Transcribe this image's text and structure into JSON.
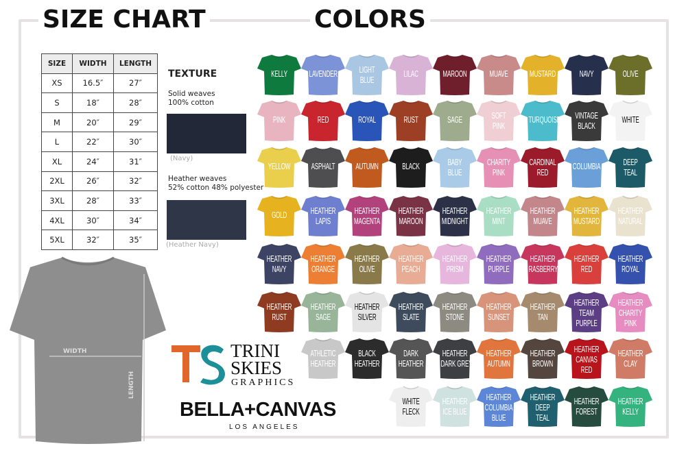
{
  "titles": {
    "size_chart": "SIZE CHART",
    "colors": "COLORS"
  },
  "size_table": {
    "headers": [
      "SIZE",
      "WIDTH",
      "LENGTH"
    ],
    "rows": [
      [
        "XS",
        "16.5″",
        "27″"
      ],
      [
        "S",
        "18″",
        "28″"
      ],
      [
        "M",
        "20″",
        "29″"
      ],
      [
        "L",
        "22″",
        "30″"
      ],
      [
        "XL",
        "24″",
        "31″"
      ],
      [
        "2XL",
        "26″",
        "32″"
      ],
      [
        "3XL",
        "28″",
        "33″"
      ],
      [
        "4XL",
        "30″",
        "34″"
      ],
      [
        "5XL",
        "32″",
        "35″"
      ]
    ]
  },
  "texture": {
    "title": "TEXTURE",
    "solid_line1": "Solid weaves",
    "solid_line2": "100% cotton",
    "solid_caption": "(Navy)",
    "solid_color": "#232838",
    "heather_line1": "Heather weaves",
    "heather_line2": "52% cotton 48% polyester",
    "heather_caption": "(Heather Navy)",
    "heather_color": "#2f3647"
  },
  "diagram": {
    "width_label": "WIDTH",
    "length_label": "LENGTH",
    "shirt_color": "#8e8e8e"
  },
  "brand": {
    "ts_line1": "TRINI",
    "ts_line2": "SKIES",
    "ts_line3": "GRAPHICS",
    "bc_name": "BELLA+CANVAS",
    "bc_sub": "LOS ANGELES",
    "ts_orange": "#e0662a",
    "ts_teal": "#1d8f98"
  },
  "colors": [
    [
      [
        "KELLY",
        "#0f7a3e"
      ],
      [
        "LAVENDER",
        "#7c93d8"
      ],
      [
        "LIGHT|BLUE",
        "#a9c7e3"
      ],
      [
        "LILAC",
        "#d9b3d6"
      ],
      [
        "MAROON",
        "#6e1f2b"
      ],
      [
        "MUAVE",
        "#c98a8a"
      ],
      [
        "MUSTARD",
        "#e4b22a"
      ],
      [
        "NAVY",
        "#26304d"
      ],
      [
        "OLIVE",
        "#6b6f2a"
      ]
    ],
    [
      [
        "PINK",
        "#e8b4c0"
      ],
      [
        "RED",
        "#c8252e"
      ],
      [
        "ROYAL",
        "#2a55b8"
      ],
      [
        "RUST",
        "#9c3f24"
      ],
      [
        "SAGE",
        "#9fab8d"
      ],
      [
        "SOFT|PINK",
        "#efcfd4"
      ],
      [
        "TURQUOISE",
        "#4cbccd"
      ],
      [
        "VINTAGE|BLACK",
        "#3a3a3a"
      ],
      [
        "WHITE",
        "#f3f3f3",
        "#111"
      ]
    ],
    [
      [
        "YELLOW",
        "#e9cf4c"
      ],
      [
        "ASPHALT",
        "#4e4e50"
      ],
      [
        "AUTUMN",
        "#c05a1f"
      ],
      [
        "BLACK",
        "#1d1d1d"
      ],
      [
        "BABY|BLUE",
        "#a9cbe8"
      ],
      [
        "CHARITY|PINK",
        "#e790b6"
      ],
      [
        "CARDINAL|RED",
        "#9b1b2b"
      ],
      [
        "COLUMBIA",
        "#6a9fd8"
      ],
      [
        "DEEP|TEAL",
        "#1c5a67"
      ]
    ],
    [
      [
        "GOLD",
        "#e6b21f"
      ],
      [
        "HEATHER|LAPIS",
        "#6f7fcf"
      ],
      [
        "HEATHER|MAGENTA",
        "#b2427c"
      ],
      [
        "HEATHER|MAROON",
        "#7a3344"
      ],
      [
        "HEATHER|MIDNIGHT",
        "#2c3147"
      ],
      [
        "HEATHER|MINT",
        "#a9dec5"
      ],
      [
        "HEATHER|MUAVE",
        "#c3868b"
      ],
      [
        "HEATHER|MUSTARD",
        "#e2b63c"
      ],
      [
        "HEATHER|NATURAL",
        "#e9e2cf"
      ]
    ],
    [
      [
        "HEATHER|NAVY",
        "#3d4362"
      ],
      [
        "HEATHER|ORANGE",
        "#ec7f34"
      ],
      [
        "HEATHER|OLIVE",
        "#8a7a4a"
      ],
      [
        "HEATHER|PEACH",
        "#e7ac93"
      ],
      [
        "HEATHER|PRISM",
        "#e7b6dc"
      ],
      [
        "HEATHER|PURPLE",
        "#8f6cbe"
      ],
      [
        "HEATHER|RASBERRY",
        "#c7365c"
      ],
      [
        "HEATHER|RED",
        "#d9403c"
      ],
      [
        "HEATHER|ROYAL",
        "#3452ad"
      ]
    ],
    [
      [
        "HEATHER|RUST",
        "#8f3b22"
      ],
      [
        "HEATHER|SAGE",
        "#98b59a"
      ],
      [
        "HEATHER|SILVER",
        "#e4e4e4",
        "#111"
      ],
      [
        "HEATHER|SLATE",
        "#3d4b5c"
      ],
      [
        "HEATHER|STONE",
        "#8d8a82"
      ],
      [
        "HEATHER|SUNSET",
        "#d7947a"
      ],
      [
        "HEATHER|TAN",
        "#a58a6e"
      ],
      [
        "HEATHER|TEAM|PURPLE",
        "#5c3e85"
      ],
      [
        "HEATHER|CHARITY|PINK",
        "#e78cc0"
      ]
    ],
    [
      null,
      [
        "ATHLETIC|HEATHER",
        "#c8c8c8"
      ],
      [
        "BLACK|HEATHER",
        "#2c2c2c"
      ],
      [
        "DARK|HEATHER",
        "#555555"
      ],
      [
        "HEATHER|DARK GREY",
        "#3e3f42"
      ],
      [
        "HEATHER|AUTUMN",
        "#e0753e"
      ],
      [
        "HEATHER|BROWN",
        "#54463f"
      ],
      [
        "HEATHER|CANVAS|RED",
        "#b8141c"
      ],
      [
        "HEATHER|CLAY",
        "#cf7b66"
      ]
    ],
    [
      null,
      null,
      null,
      [
        "WHITE|FLECK",
        "#eeeeee",
        "#111"
      ],
      [
        "HEATHER|ICE BLUE",
        "#cfe2e0"
      ],
      [
        "HEATHER|COLUMBIA|BLUE",
        "#5d86d7"
      ],
      [
        "HEATHER|DEEP|TEAL",
        "#1f5f6e"
      ],
      [
        "HEATHER|FOREST",
        "#254c3e"
      ],
      [
        "HEATHER|KELLY",
        "#34b37e"
      ]
    ]
  ]
}
